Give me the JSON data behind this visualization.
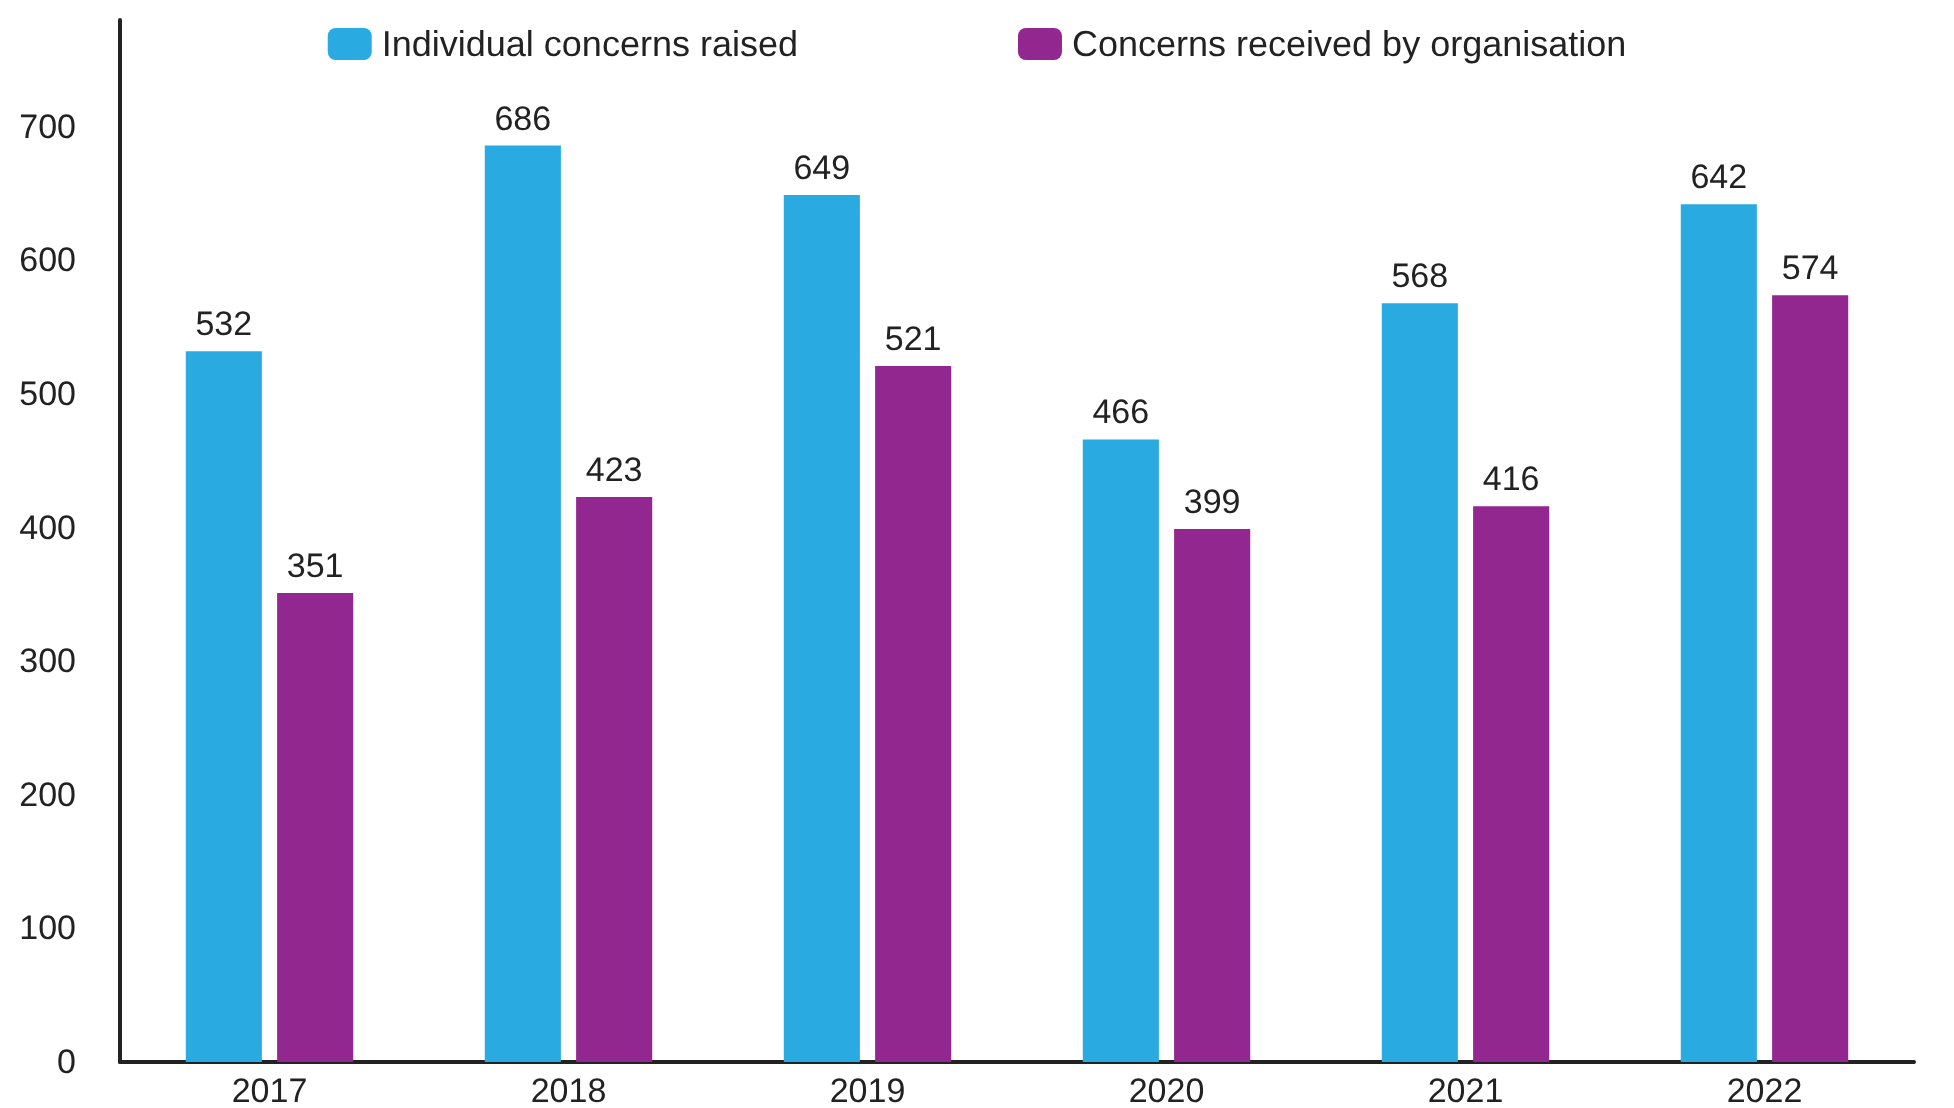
{
  "chart_data": {
    "type": "bar",
    "categories": [
      "2017",
      "2018",
      "2019",
      "2020",
      "2021",
      "2022"
    ],
    "series": [
      {
        "name": "Individual concerns raised",
        "color": "#29abe2",
        "values": [
          532,
          686,
          649,
          466,
          568,
          642
        ]
      },
      {
        "name": "Concerns received by organisation",
        "color": "#92278f",
        "values": [
          351,
          423,
          521,
          399,
          416,
          574
        ]
      }
    ],
    "ylim": [
      0,
      780
    ],
    "yticks": [
      0,
      100,
      200,
      300,
      400,
      500,
      600,
      700
    ],
    "grid": false,
    "legend": "top",
    "data_labels": true
  }
}
